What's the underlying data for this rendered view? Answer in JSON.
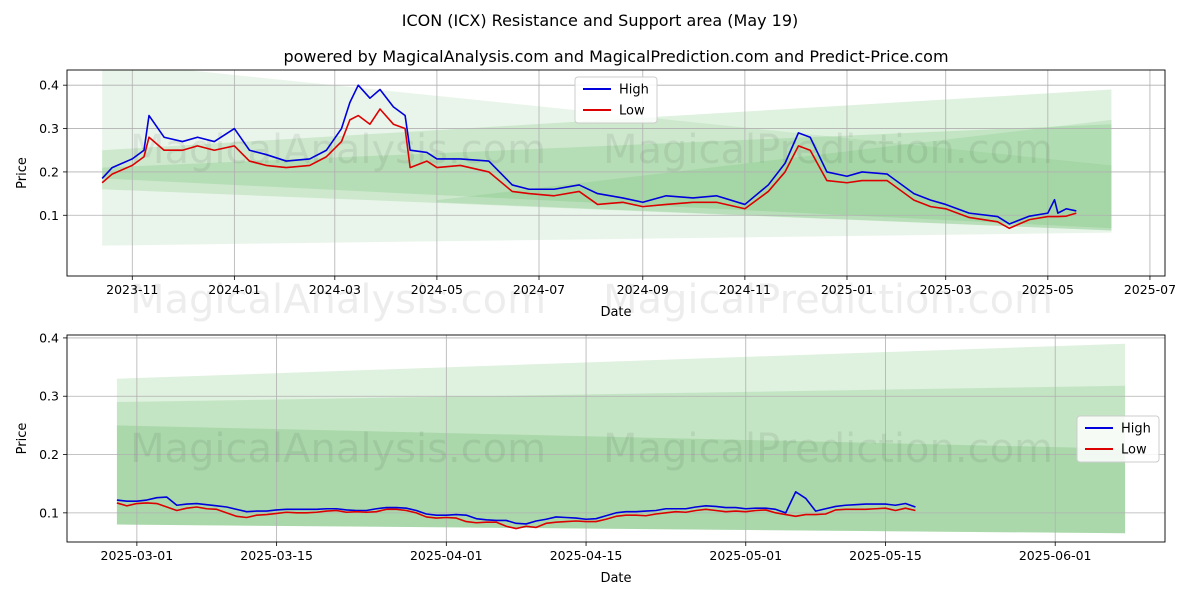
{
  "title": "ICON (ICX) Resistance and Support area (May 19)",
  "subtitle": "powered by MagicalAnalysis.com and MagicalPrediction.com and Predict-Price.com",
  "watermarks": [
    "MagicalAnalysis.com",
    "MagicalPrediction.com"
  ],
  "colors": {
    "high": "#0000dd",
    "low": "#dd0000",
    "band": "#4caf50",
    "grid": "#b0b0b0"
  },
  "chart_data": [
    {
      "type": "line",
      "xlabel": "Date",
      "ylabel": "Price",
      "x_range": [
        "2023-09-23",
        "2025-07-10"
      ],
      "ylim": [
        -0.04,
        0.435
      ],
      "grid": true,
      "legend": "top-center",
      "x_ticks": [
        "2023-11",
        "2024-01",
        "2024-03",
        "2024-05",
        "2024-07",
        "2024-09",
        "2024-11",
        "2025-01",
        "2025-03",
        "2025-05",
        "2025-07"
      ],
      "y_ticks": [
        0.1,
        0.2,
        0.3,
        0.4
      ],
      "bands": [
        {
          "x": [
            "2023-10-14",
            "2025-06-08"
          ],
          "upper": [
            0.455,
            0.215
          ],
          "lower": [
            0.03,
            0.06
          ],
          "opacity": 0.12
        },
        {
          "x": [
            "2023-10-14",
            "2025-06-08"
          ],
          "upper": [
            0.25,
            0.39
          ],
          "lower": [
            0.16,
            0.065
          ],
          "opacity": 0.18
        },
        {
          "x": [
            "2023-10-14",
            "2025-06-08"
          ],
          "upper": [
            0.21,
            0.31
          ],
          "lower": [
            0.185,
            0.07
          ],
          "opacity": 0.18
        },
        {
          "x": [
            "2024-05-01",
            "2025-06-08"
          ],
          "upper": [
            0.135,
            0.32
          ],
          "lower": [
            0.13,
            0.065
          ],
          "opacity": 0.15
        }
      ],
      "series": [
        {
          "name": "High",
          "x": [
            "2023-10-14",
            "2023-10-20",
            "2023-11-01",
            "2023-11-08",
            "2023-11-11",
            "2023-11-20",
            "2023-12-01",
            "2023-12-10",
            "2023-12-20",
            "2024-01-01",
            "2024-01-10",
            "2024-01-20",
            "2024-02-01",
            "2024-02-15",
            "2024-02-25",
            "2024-03-05",
            "2024-03-10",
            "2024-03-15",
            "2024-03-22",
            "2024-03-28",
            "2024-04-05",
            "2024-04-12",
            "2024-04-15",
            "2024-04-25",
            "2024-05-01",
            "2024-05-15",
            "2024-06-01",
            "2024-06-15",
            "2024-06-25",
            "2024-07-10",
            "2024-07-25",
            "2024-08-05",
            "2024-08-20",
            "2024-09-01",
            "2024-09-15",
            "2024-10-01",
            "2024-10-15",
            "2024-11-01",
            "2024-11-15",
            "2024-11-25",
            "2024-12-03",
            "2024-12-10",
            "2024-12-20",
            "2025-01-01",
            "2025-01-10",
            "2025-01-25",
            "2025-02-10",
            "2025-02-20",
            "2025-03-01",
            "2025-03-15",
            "2025-04-01",
            "2025-04-08",
            "2025-04-20",
            "2025-05-01",
            "2025-05-05",
            "2025-05-07",
            "2025-05-12",
            "2025-05-18"
          ],
          "values": [
            0.185,
            0.21,
            0.23,
            0.25,
            0.33,
            0.28,
            0.27,
            0.28,
            0.27,
            0.3,
            0.25,
            0.24,
            0.225,
            0.23,
            0.25,
            0.3,
            0.36,
            0.4,
            0.37,
            0.39,
            0.35,
            0.33,
            0.25,
            0.245,
            0.23,
            0.23,
            0.225,
            0.17,
            0.16,
            0.16,
            0.17,
            0.15,
            0.14,
            0.13,
            0.145,
            0.14,
            0.145,
            0.125,
            0.17,
            0.22,
            0.29,
            0.28,
            0.2,
            0.19,
            0.2,
            0.195,
            0.15,
            0.135,
            0.125,
            0.105,
            0.097,
            0.08,
            0.098,
            0.105,
            0.136,
            0.105,
            0.115,
            0.11
          ]
        },
        {
          "name": "Low",
          "x": [
            "2023-10-14",
            "2023-10-20",
            "2023-11-01",
            "2023-11-08",
            "2023-11-11",
            "2023-11-20",
            "2023-12-01",
            "2023-12-10",
            "2023-12-20",
            "2024-01-01",
            "2024-01-10",
            "2024-01-20",
            "2024-02-01",
            "2024-02-15",
            "2024-02-25",
            "2024-03-05",
            "2024-03-10",
            "2024-03-15",
            "2024-03-22",
            "2024-03-28",
            "2024-04-05",
            "2024-04-12",
            "2024-04-15",
            "2024-04-25",
            "2024-05-01",
            "2024-05-15",
            "2024-06-01",
            "2024-06-15",
            "2024-06-25",
            "2024-07-10",
            "2024-07-25",
            "2024-08-05",
            "2024-08-20",
            "2024-09-01",
            "2024-09-15",
            "2024-10-01",
            "2024-10-15",
            "2024-11-01",
            "2024-11-15",
            "2024-11-25",
            "2024-12-03",
            "2024-12-10",
            "2024-12-20",
            "2025-01-01",
            "2025-01-10",
            "2025-01-25",
            "2025-02-10",
            "2025-02-20",
            "2025-03-01",
            "2025-03-15",
            "2025-04-01",
            "2025-04-08",
            "2025-04-20",
            "2025-05-01",
            "2025-05-05",
            "2025-05-07",
            "2025-05-12",
            "2025-05-18"
          ],
          "values": [
            0.175,
            0.195,
            0.215,
            0.235,
            0.28,
            0.25,
            0.25,
            0.26,
            0.25,
            0.26,
            0.225,
            0.215,
            0.21,
            0.215,
            0.235,
            0.27,
            0.32,
            0.33,
            0.31,
            0.345,
            0.31,
            0.3,
            0.21,
            0.225,
            0.21,
            0.215,
            0.2,
            0.155,
            0.15,
            0.145,
            0.155,
            0.125,
            0.13,
            0.12,
            0.125,
            0.13,
            0.13,
            0.115,
            0.155,
            0.2,
            0.26,
            0.25,
            0.18,
            0.175,
            0.18,
            0.18,
            0.135,
            0.12,
            0.115,
            0.095,
            0.085,
            0.07,
            0.09,
            0.097,
            0.097,
            0.097,
            0.098,
            0.105
          ]
        }
      ]
    },
    {
      "type": "line",
      "xlabel": "Date",
      "ylabel": "Price",
      "x_range": [
        "2025-02-22",
        "2025-06-12"
      ],
      "ylim": [
        0.05,
        0.405
      ],
      "grid": true,
      "legend": "right",
      "x_ticks": [
        "2025-03-01",
        "2025-03-15",
        "2025-04-01",
        "2025-04-15",
        "2025-05-01",
        "2025-05-15",
        "2025-06-01"
      ],
      "y_ticks": [
        0.1,
        0.2,
        0.3,
        0.4
      ],
      "bands": [
        {
          "x": [
            "2025-02-27",
            "2025-06-08"
          ],
          "upper": [
            0.33,
            0.39
          ],
          "lower": [
            0.08,
            0.065
          ],
          "opacity": 0.18
        },
        {
          "x": [
            "2025-02-27",
            "2025-06-08"
          ],
          "upper": [
            0.29,
            0.318
          ],
          "lower": [
            0.08,
            0.065
          ],
          "opacity": 0.18
        },
        {
          "x": [
            "2025-02-27",
            "2025-06-08"
          ],
          "upper": [
            0.25,
            0.21
          ],
          "lower": [
            0.08,
            0.065
          ],
          "opacity": 0.22
        }
      ],
      "series": [
        {
          "name": "High",
          "x": [
            "2025-02-27",
            "2025-02-28",
            "2025-03-01",
            "2025-03-02",
            "2025-03-03",
            "2025-03-04",
            "2025-03-05",
            "2025-03-06",
            "2025-03-07",
            "2025-03-08",
            "2025-03-09",
            "2025-03-10",
            "2025-03-11",
            "2025-03-12",
            "2025-03-13",
            "2025-03-14",
            "2025-03-15",
            "2025-03-16",
            "2025-03-17",
            "2025-03-18",
            "2025-03-19",
            "2025-03-20",
            "2025-03-21",
            "2025-03-22",
            "2025-03-23",
            "2025-03-24",
            "2025-03-25",
            "2025-03-26",
            "2025-03-27",
            "2025-03-28",
            "2025-03-29",
            "2025-03-30",
            "2025-03-31",
            "2025-04-01",
            "2025-04-02",
            "2025-04-03",
            "2025-04-04",
            "2025-04-05",
            "2025-04-06",
            "2025-04-07",
            "2025-04-08",
            "2025-04-09",
            "2025-04-10",
            "2025-04-11",
            "2025-04-12",
            "2025-04-13",
            "2025-04-14",
            "2025-04-15",
            "2025-04-16",
            "2025-04-17",
            "2025-04-18",
            "2025-04-19",
            "2025-04-20",
            "2025-04-21",
            "2025-04-22",
            "2025-04-23",
            "2025-04-24",
            "2025-04-25",
            "2025-04-26",
            "2025-04-27",
            "2025-04-28",
            "2025-04-29",
            "2025-04-30",
            "2025-05-01",
            "2025-05-02",
            "2025-05-03",
            "2025-05-04",
            "2025-05-05",
            "2025-05-06",
            "2025-05-07",
            "2025-05-08",
            "2025-05-09",
            "2025-05-10",
            "2025-05-11",
            "2025-05-12",
            "2025-05-13",
            "2025-05-14",
            "2025-05-15",
            "2025-05-16",
            "2025-05-17",
            "2025-05-18"
          ],
          "values": [
            0.122,
            0.12,
            0.12,
            0.122,
            0.126,
            0.127,
            0.113,
            0.115,
            0.116,
            0.114,
            0.112,
            0.11,
            0.106,
            0.102,
            0.103,
            0.103,
            0.105,
            0.106,
            0.106,
            0.106,
            0.106,
            0.107,
            0.107,
            0.105,
            0.104,
            0.104,
            0.107,
            0.109,
            0.109,
            0.108,
            0.104,
            0.098,
            0.096,
            0.096,
            0.097,
            0.096,
            0.09,
            0.088,
            0.087,
            0.087,
            0.082,
            0.081,
            0.086,
            0.089,
            0.093,
            0.092,
            0.091,
            0.089,
            0.09,
            0.095,
            0.1,
            0.102,
            0.102,
            0.103,
            0.104,
            0.107,
            0.107,
            0.107,
            0.11,
            0.112,
            0.111,
            0.109,
            0.109,
            0.107,
            0.108,
            0.108,
            0.106,
            0.1,
            0.136,
            0.125,
            0.103,
            0.107,
            0.111,
            0.113,
            0.114,
            0.115,
            0.115,
            0.115,
            0.113,
            0.116,
            0.11
          ]
        },
        {
          "name": "Low",
          "x": [
            "2025-02-27",
            "2025-02-28",
            "2025-03-01",
            "2025-03-02",
            "2025-03-03",
            "2025-03-04",
            "2025-03-05",
            "2025-03-06",
            "2025-03-07",
            "2025-03-08",
            "2025-03-09",
            "2025-03-10",
            "2025-03-11",
            "2025-03-12",
            "2025-03-13",
            "2025-03-14",
            "2025-03-15",
            "2025-03-16",
            "2025-03-17",
            "2025-03-18",
            "2025-03-19",
            "2025-03-20",
            "2025-03-21",
            "2025-03-22",
            "2025-03-23",
            "2025-03-24",
            "2025-03-25",
            "2025-03-26",
            "2025-03-27",
            "2025-03-28",
            "2025-03-29",
            "2025-03-30",
            "2025-03-31",
            "2025-04-01",
            "2025-04-02",
            "2025-04-03",
            "2025-04-04",
            "2025-04-05",
            "2025-04-06",
            "2025-04-07",
            "2025-04-08",
            "2025-04-09",
            "2025-04-10",
            "2025-04-11",
            "2025-04-12",
            "2025-04-13",
            "2025-04-14",
            "2025-04-15",
            "2025-04-16",
            "2025-04-17",
            "2025-04-18",
            "2025-04-19",
            "2025-04-20",
            "2025-04-21",
            "2025-04-22",
            "2025-04-23",
            "2025-04-24",
            "2025-04-25",
            "2025-04-26",
            "2025-04-27",
            "2025-04-28",
            "2025-04-29",
            "2025-04-30",
            "2025-05-01",
            "2025-05-02",
            "2025-05-03",
            "2025-05-04",
            "2025-05-05",
            "2025-05-06",
            "2025-05-07",
            "2025-05-08",
            "2025-05-09",
            "2025-05-10",
            "2025-05-11",
            "2025-05-12",
            "2025-05-13",
            "2025-05-14",
            "2025-05-15",
            "2025-05-16",
            "2025-05-17",
            "2025-05-18"
          ],
          "values": [
            0.117,
            0.112,
            0.116,
            0.117,
            0.116,
            0.11,
            0.104,
            0.108,
            0.11,
            0.107,
            0.106,
            0.1,
            0.094,
            0.092,
            0.096,
            0.097,
            0.099,
            0.101,
            0.1,
            0.1,
            0.101,
            0.103,
            0.104,
            0.101,
            0.102,
            0.101,
            0.102,
            0.106,
            0.106,
            0.104,
            0.1,
            0.093,
            0.091,
            0.092,
            0.091,
            0.085,
            0.083,
            0.084,
            0.084,
            0.077,
            0.073,
            0.077,
            0.075,
            0.082,
            0.084,
            0.085,
            0.086,
            0.085,
            0.085,
            0.089,
            0.094,
            0.096,
            0.096,
            0.095,
            0.098,
            0.1,
            0.102,
            0.101,
            0.104,
            0.106,
            0.104,
            0.102,
            0.103,
            0.102,
            0.104,
            0.105,
            0.1,
            0.097,
            0.094,
            0.097,
            0.097,
            0.098,
            0.105,
            0.106,
            0.106,
            0.106,
            0.107,
            0.108,
            0.104,
            0.108,
            0.104
          ]
        }
      ]
    }
  ]
}
